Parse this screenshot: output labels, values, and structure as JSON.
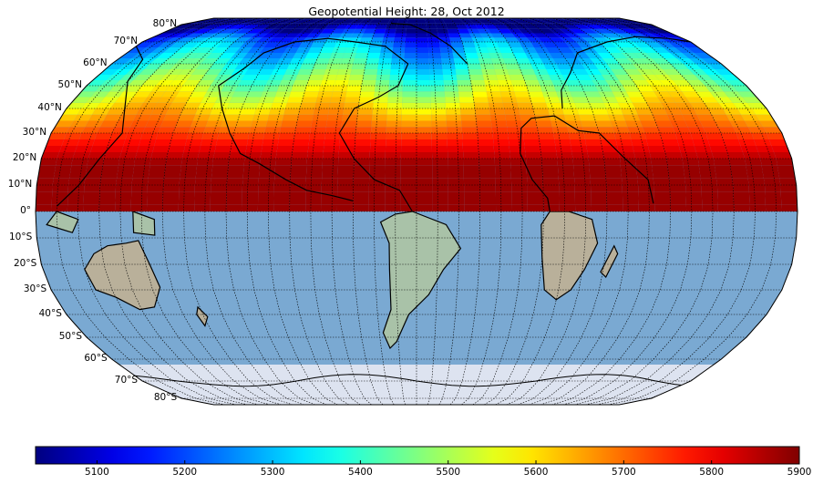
{
  "title": "Geopotential Height: 28, Oct 2012",
  "latitude_labels": [
    "80°N",
    "70°N",
    "60°N",
    "50°N",
    "40°N",
    "30°N",
    "20°N",
    "10°N",
    "0°",
    "10°S",
    "20°S",
    "30°S",
    "40°S",
    "50°S",
    "60°S",
    "70°S",
    "80°S"
  ],
  "colorbar": {
    "colormap": "jet",
    "min": 5030,
    "max": 5900,
    "ticks": [
      "5100",
      "5200",
      "5300",
      "5400",
      "5500",
      "5600",
      "5700",
      "5800",
      "5900"
    ]
  },
  "colors": {
    "ocean": "#7aa9d2",
    "land": "#b9b09a",
    "land_green": "#a9c2a8",
    "ice": "#dde3f0",
    "coast": "#000000",
    "grid": "#000000"
  },
  "chart_data": {
    "type": "heatmap",
    "variable": "Geopotential Height",
    "date": "28, Oct 2012",
    "projection": "robinson",
    "hemisphere_shown": "northern",
    "value_range": [
      5030,
      5900
    ]
  }
}
